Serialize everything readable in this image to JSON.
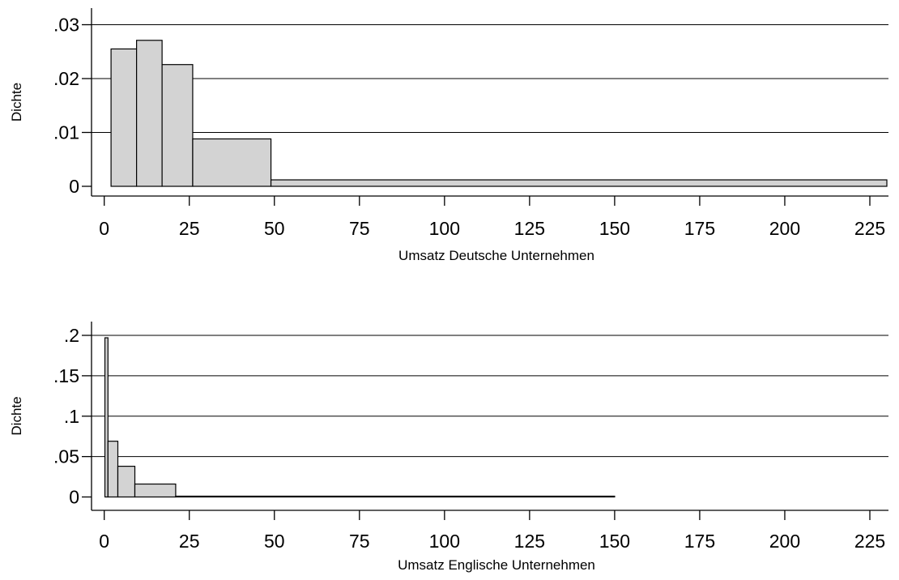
{
  "chart_data": [
    {
      "type": "bar",
      "histogram": true,
      "xlabel": "Umsatz Deutsche Unternehmen",
      "ylabel": "Dichte",
      "xlim": [
        0,
        230
      ],
      "ylim": [
        0,
        0.03
      ],
      "x_ticks": [
        {
          "value": 0,
          "label": "0"
        },
        {
          "value": 25,
          "label": "25"
        },
        {
          "value": 50,
          "label": "50"
        },
        {
          "value": 75,
          "label": "75"
        },
        {
          "value": 100,
          "label": "100"
        },
        {
          "value": 125,
          "label": "125"
        },
        {
          "value": 150,
          "label": "150"
        },
        {
          "value": 175,
          "label": "175"
        },
        {
          "value": 200,
          "label": "200"
        },
        {
          "value": 225,
          "label": "225"
        }
      ],
      "y_ticks": [
        {
          "value": 0,
          "label": "0"
        },
        {
          "value": 0.01,
          "label": ".01"
        },
        {
          "value": 0.02,
          "label": ".02"
        },
        {
          "value": 0.03,
          "label": ".03"
        }
      ],
      "grid": true,
      "bins": [
        {
          "start": 2,
          "end": 9.5,
          "density": 0.0255
        },
        {
          "start": 9.5,
          "end": 17,
          "density": 0.0271
        },
        {
          "start": 17,
          "end": 26,
          "density": 0.0226
        },
        {
          "start": 26,
          "end": 49,
          "density": 0.0088
        },
        {
          "start": 49,
          "end": 230,
          "density": 0.0012
        }
      ]
    },
    {
      "type": "bar",
      "histogram": true,
      "xlabel": "Umsatz Englische Unternehmen",
      "ylabel": "Dichte",
      "xlim": [
        0,
        230
      ],
      "ylim": [
        0,
        0.2
      ],
      "x_ticks": [
        {
          "value": 0,
          "label": "0"
        },
        {
          "value": 25,
          "label": "25"
        },
        {
          "value": 50,
          "label": "50"
        },
        {
          "value": 75,
          "label": "75"
        },
        {
          "value": 100,
          "label": "100"
        },
        {
          "value": 125,
          "label": "125"
        },
        {
          "value": 150,
          "label": "150"
        },
        {
          "value": 175,
          "label": "175"
        },
        {
          "value": 200,
          "label": "200"
        },
        {
          "value": 225,
          "label": "225"
        }
      ],
      "y_ticks": [
        {
          "value": 0,
          "label": "0"
        },
        {
          "value": 0.05,
          "label": ".05"
        },
        {
          "value": 0.1,
          "label": ".1"
        },
        {
          "value": 0.15,
          "label": ".15"
        },
        {
          "value": 0.2,
          "label": ".2"
        }
      ],
      "grid": true,
      "bins": [
        {
          "start": 0.2,
          "end": 1.1,
          "density": 0.197
        },
        {
          "start": 1.1,
          "end": 4,
          "density": 0.069
        },
        {
          "start": 4,
          "end": 9,
          "density": 0.038
        },
        {
          "start": 9,
          "end": 21,
          "density": 0.016
        },
        {
          "start": 21,
          "end": 150,
          "density": 0.001
        }
      ]
    }
  ],
  "colors": {
    "bar_fill": "#d3d3d3",
    "bar_stroke": "#000000",
    "grid": "#000000",
    "background": "#ffffff"
  }
}
